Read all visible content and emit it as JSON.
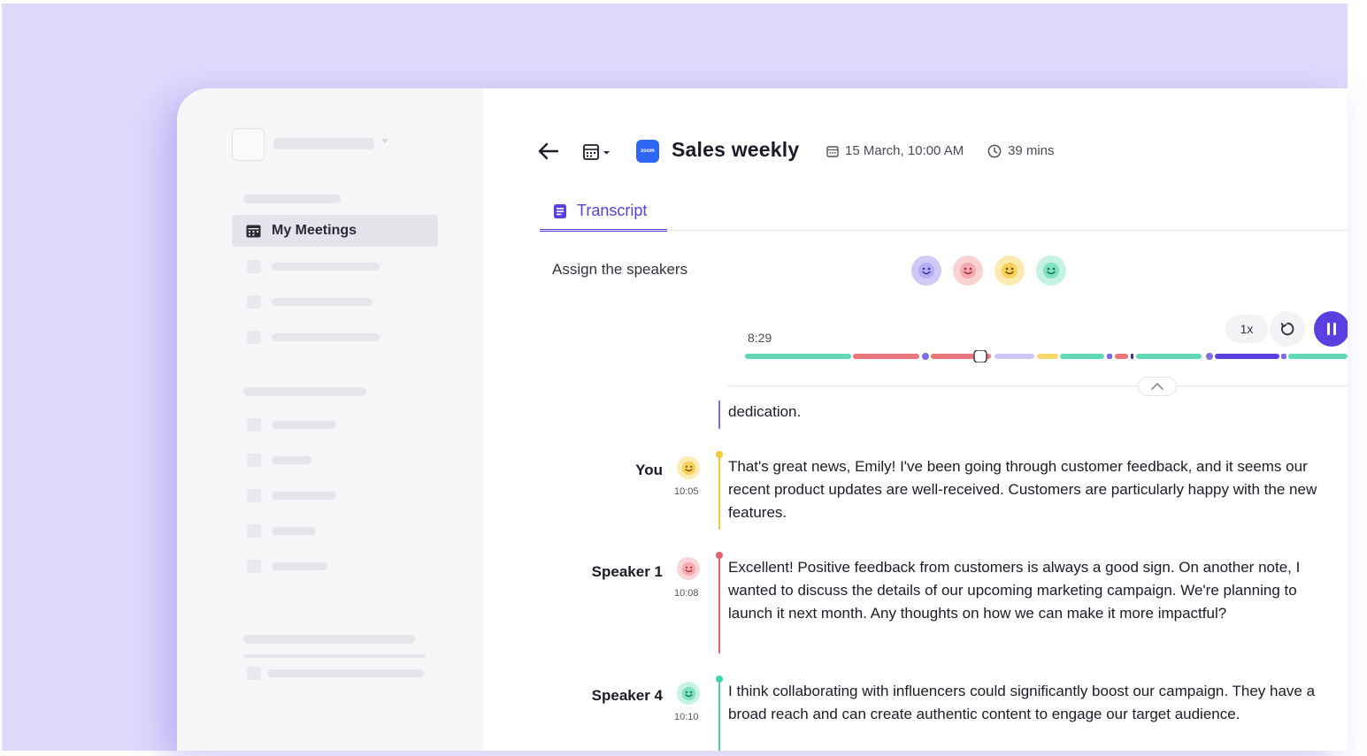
{
  "sidebar": {
    "nav_active_label": "My Meetings"
  },
  "header": {
    "title": "Sales weekly",
    "zoom_logo_text": "zoom",
    "date": "15 March, 10:00 AM",
    "duration": "39 mins"
  },
  "tabs": [
    {
      "label": "Transcript",
      "active": true
    }
  ],
  "assign": {
    "label": "Assign the speakers",
    "speaker_colors": [
      "#cfcaf7",
      "#fbd2d4",
      "#fdeab0",
      "#c6f2e1"
    ]
  },
  "player": {
    "current_time": "8:29",
    "speed": "1x",
    "state": "playing",
    "progress": 0.39
  },
  "transcript": {
    "continuation": "dedication.",
    "entries": [
      {
        "speaker": "You",
        "time": "10:05",
        "color": "#f4c93a",
        "face_bg": "#fdecb3",
        "text": "That's great news, Emily! I've been going through customer feedback, and it seems our recent product updates are well-received. Customers are particularly happy with the new features."
      },
      {
        "speaker": "Speaker 1",
        "time": "10:08",
        "color": "#e4636f",
        "face_bg": "#fbd6d8",
        "text": "Excellent! Positive feedback from customers is always a good sign. On another note, I wanted to discuss the details of our upcoming marketing campaign. We're planning to launch it next month. Any thoughts on how we can make it more impactful?"
      },
      {
        "speaker": "Speaker 4",
        "time": "10:10",
        "color": "#3fd3ab",
        "face_bg": "#c9f2e3",
        "text": "I think collaborating with influencers could significantly boost our campaign. They have a broad reach and can create authentic content to engage our target audience."
      }
    ]
  }
}
